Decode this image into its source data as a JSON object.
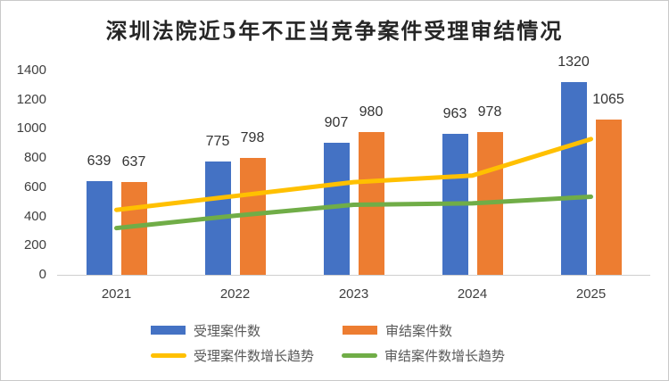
{
  "chart_data": {
    "type": "bar",
    "title": "深圳法院近5年不正当竞争案件受理审结情况",
    "categories": [
      "2021",
      "2022",
      "2023",
      "2024",
      "2025"
    ],
    "series": [
      {
        "key": "accepted",
        "name": "受理案件数",
        "type": "bar",
        "color": "#4472C4",
        "values": [
          639,
          775,
          907,
          963,
          1320
        ]
      },
      {
        "key": "concluded",
        "name": "审结案件数",
        "type": "bar",
        "color": "#ED7D31",
        "values": [
          637,
          798,
          980,
          978,
          1065
        ]
      },
      {
        "key": "accepted-trend",
        "name": "受理案件数增长趋势",
        "type": "line",
        "color": "#FFC000",
        "values": [
          445,
          540,
          635,
          680,
          930
        ]
      },
      {
        "key": "concluded-trend",
        "name": "审结案件数增长趋势",
        "type": "line",
        "color": "#70AD47",
        "values": [
          320,
          405,
          480,
          490,
          535
        ]
      }
    ],
    "ylim": [
      0,
      1400
    ],
    "yticks": [
      0,
      200,
      400,
      600,
      800,
      1000,
      1200,
      1400
    ],
    "ytick_step": 200,
    "xlabel": "",
    "ylabel": "",
    "grid": false,
    "bar_value_labels": true,
    "legend_position": "bottom"
  },
  "colors": {
    "accepted_bar": "#4472C4",
    "concluded_bar": "#ED7D31",
    "accepted_trend_line": "#FFC000",
    "concluded_trend_line": "#70AD47",
    "axis_line": "#cfcfcf",
    "axis_text": "#404040",
    "legend_text": "#595959",
    "title_text": "#262626"
  }
}
